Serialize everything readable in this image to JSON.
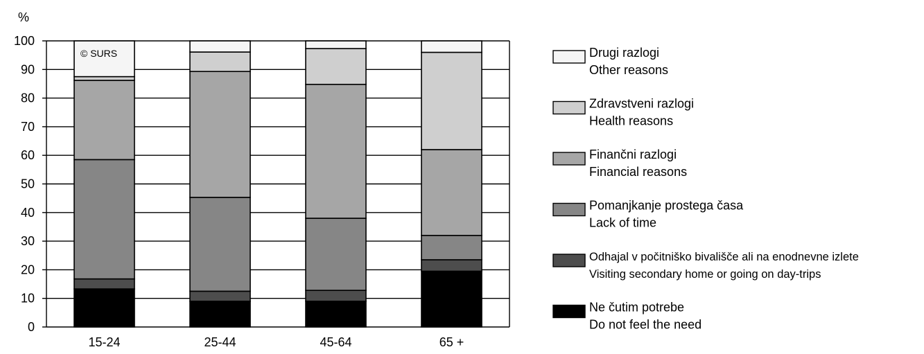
{
  "chart_data": {
    "type": "bar",
    "stacked": true,
    "ylabel": "%",
    "ylim": [
      0,
      100
    ],
    "yticks": [
      0,
      10,
      20,
      30,
      40,
      50,
      60,
      70,
      80,
      90,
      100
    ],
    "grid": true,
    "legend_position": "right",
    "watermark": "© SURS",
    "categories": [
      "15-24",
      "25-44",
      "45-64",
      "65 +"
    ],
    "series": [
      {
        "name_sl": "Ne čutim potrebe",
        "name_en": "Do not feel the need",
        "color": "#000000",
        "values": [
          13.3,
          9.0,
          9.0,
          19.5
        ]
      },
      {
        "name_sl": "Odhajal v počitniško bivališče ali na enodnevne izlete",
        "name_en": "Visiting secondary home or going on day-trips",
        "color": "#4d4d4d",
        "values": [
          3.5,
          3.5,
          3.8,
          4.0
        ]
      },
      {
        "name_sl": "Pomanjkanje prostega časa",
        "name_en": "Lack of time",
        "color": "#868686",
        "values": [
          41.7,
          32.8,
          25.2,
          8.5
        ]
      },
      {
        "name_sl": "Finančni razlogi",
        "name_en": "Financial reasons",
        "color": "#a6a6a6",
        "values": [
          27.7,
          44.0,
          46.8,
          30.0
        ]
      },
      {
        "name_sl": "Zdravstveni razlogi",
        "name_en": "Health reasons",
        "color": "#cfcfcf",
        "values": [
          1.3,
          6.8,
          12.5,
          34.0
        ]
      },
      {
        "name_sl": "Drugi razlogi",
        "name_en": "Other reasons",
        "color": "#f5f5f5",
        "values": [
          12.5,
          3.9,
          2.7,
          4.0
        ]
      }
    ]
  }
}
